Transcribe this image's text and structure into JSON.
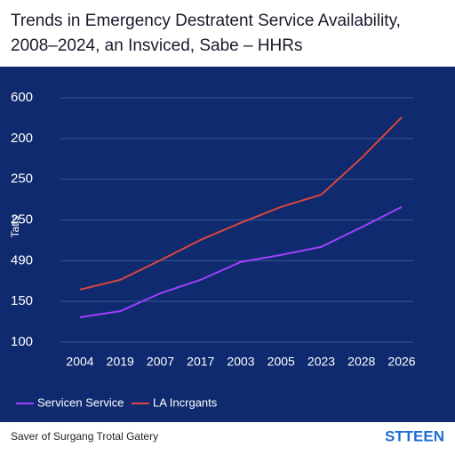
{
  "chart_data": {
    "type": "line",
    "title": "Trends in Emergency Destratent Service Availability,",
    "subtitle": "2008–2024, an Insviced, Sabe – HHRs",
    "y_label": "Tatis",
    "categories": [
      "2004",
      "2019",
      "2007",
      "2017",
      "2003",
      "2005",
      "2023",
      "2028",
      "2026"
    ],
    "series": [
      {
        "name": "Servicen Service",
        "color": "#a040ff",
        "values": [
          0.61,
          0.76,
          1.2,
          1.53,
          1.97,
          2.14,
          2.34,
          2.82,
          3.32
        ]
      },
      {
        "name": "LA Incrgants",
        "color": "#d9463e",
        "values": [
          1.29,
          1.53,
          2.01,
          2.51,
          2.93,
          3.32,
          3.62,
          4.52,
          5.52
        ]
      }
    ],
    "ylim": [
      0,
      6
    ],
    "yticks": [
      {
        "value": 0,
        "label": "100"
      },
      {
        "value": 1,
        "label": "150"
      },
      {
        "value": 2,
        "label": "490"
      },
      {
        "value": 3,
        "label": "250"
      },
      {
        "value": 4,
        "label": "250"
      },
      {
        "value": 5,
        "label": "200"
      },
      {
        "value": 6,
        "label": "600"
      }
    ],
    "grid": true,
    "footer": "Saver of Surgang Trotal Gatery",
    "brand": "STTEEN"
  }
}
